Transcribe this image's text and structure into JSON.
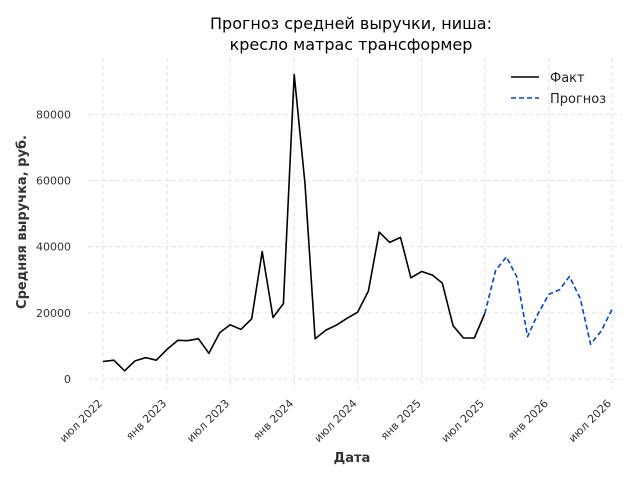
{
  "chart_data": {
    "type": "line",
    "title": [
      "Прогноз средней выручки, ниша:",
      "кресло матрас трансформер"
    ],
    "xlabel": "Дата",
    "ylabel": "Средняя выручка, руб.",
    "x_ticks": [
      {
        "date": "2022-07-01",
        "label": "июл 2022"
      },
      {
        "date": "2023-01-01",
        "label": "янв 2023"
      },
      {
        "date": "2023-07-01",
        "label": "июл 2023"
      },
      {
        "date": "2024-01-01",
        "label": "янв 2024"
      },
      {
        "date": "2024-07-01",
        "label": "июл 2024"
      },
      {
        "date": "2025-01-01",
        "label": "янв 2025"
      },
      {
        "date": "2025-07-01",
        "label": "июл 2025"
      },
      {
        "date": "2026-01-01",
        "label": "янв 2026"
      },
      {
        "date": "2026-07-01",
        "label": "июл 2026"
      }
    ],
    "y_ticks": [
      0,
      20000,
      40000,
      60000,
      80000
    ],
    "xlim": [
      "2022-05-19",
      "2026-07-30"
    ],
    "ylim": [
      -3000,
      97000
    ],
    "grid": true,
    "legend_position": "top-right",
    "series": [
      {
        "name": "Факт",
        "color": "#000000",
        "style": "solid",
        "points": [
          [
            "2022-07-01",
            5300
          ],
          [
            "2022-08-01",
            5700
          ],
          [
            "2022-09-01",
            2500
          ],
          [
            "2022-10-01",
            5500
          ],
          [
            "2022-11-01",
            6500
          ],
          [
            "2022-12-01",
            5700
          ],
          [
            "2023-01-01",
            9000
          ],
          [
            "2023-02-01",
            11700
          ],
          [
            "2023-03-01",
            11600
          ],
          [
            "2023-04-01",
            12200
          ],
          [
            "2023-05-01",
            7800
          ],
          [
            "2023-06-01",
            14000
          ],
          [
            "2023-07-01",
            16400
          ],
          [
            "2023-08-01",
            15000
          ],
          [
            "2023-09-01",
            18200
          ],
          [
            "2023-10-01",
            38500
          ],
          [
            "2023-11-01",
            18600
          ],
          [
            "2023-12-01",
            22800
          ],
          [
            "2024-01-01",
            92000
          ],
          [
            "2024-02-01",
            59000
          ],
          [
            "2024-03-01",
            12200
          ],
          [
            "2024-04-01",
            14800
          ],
          [
            "2024-05-01",
            16300
          ],
          [
            "2024-06-01",
            18400
          ],
          [
            "2024-07-01",
            20200
          ],
          [
            "2024-08-01",
            26600
          ],
          [
            "2024-09-01",
            44400
          ],
          [
            "2024-10-01",
            41300
          ],
          [
            "2024-11-01",
            42800
          ],
          [
            "2024-12-01",
            30600
          ],
          [
            "2025-01-01",
            32500
          ],
          [
            "2025-02-01",
            31400
          ],
          [
            "2025-03-01",
            29000
          ],
          [
            "2025-04-01",
            16100
          ],
          [
            "2025-05-01",
            12400
          ],
          [
            "2025-06-01",
            12400
          ],
          [
            "2025-07-01",
            19800
          ]
        ]
      },
      {
        "name": "Прогноз",
        "color": "#0044cc",
        "style": "dashed",
        "points": [
          [
            "2025-07-01",
            19800
          ],
          [
            "2025-08-01",
            32800
          ],
          [
            "2025-09-01",
            36900
          ],
          [
            "2025-10-01",
            30900
          ],
          [
            "2025-11-01",
            12800
          ],
          [
            "2025-12-01",
            19800
          ],
          [
            "2026-01-01",
            25600
          ],
          [
            "2026-02-01",
            27000
          ],
          [
            "2026-03-01",
            31000
          ],
          [
            "2026-04-01",
            24400
          ],
          [
            "2026-05-01",
            10500
          ],
          [
            "2026-06-01",
            14600
          ],
          [
            "2026-07-01",
            21000
          ]
        ]
      }
    ]
  }
}
